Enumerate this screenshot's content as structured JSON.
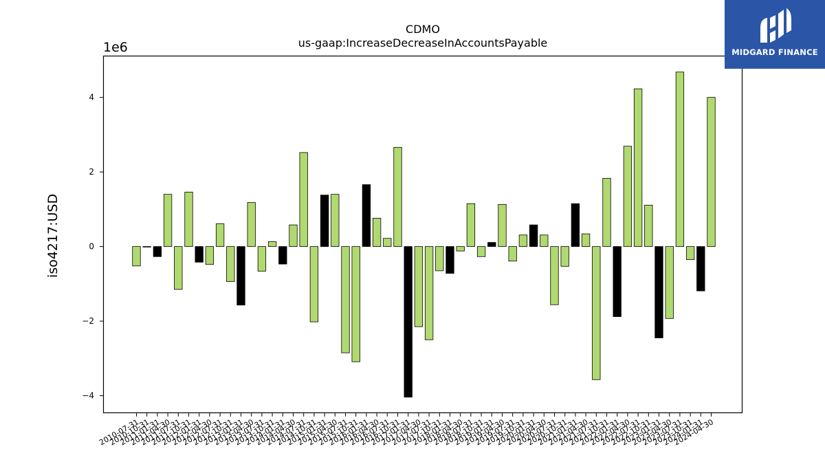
{
  "brand": {
    "name": "MIDGARD FINANCE",
    "bg_color": "#2b56a8"
  },
  "chart_data": {
    "type": "bar",
    "title": "CDMO",
    "subtitle": "us-gaap:IncreaseDecreaseInAccountsPayable",
    "ylabel": "iso4217:USD",
    "y_scale_label": "1e6",
    "y_unit": 1000000,
    "ylim": [
      -4.45,
      5.1
    ],
    "yticks": [
      -4,
      -2,
      0,
      2,
      4
    ],
    "ytick_labels": [
      "−4",
      "−2",
      "0",
      "2",
      "4"
    ],
    "grid": false,
    "legend": "none",
    "colors": {
      "green": "#b0d96f",
      "black": "#000000"
    },
    "categories": [
      "2010-07-31",
      "2010-10-31",
      "2011-01-31",
      "2011-04-30",
      "2011-07-31",
      "2011-10-31",
      "2012-01-31",
      "2012-04-30",
      "2012-07-31",
      "2012-10-31",
      "2013-01-31",
      "2013-04-30",
      "2013-07-31",
      "2013-10-31",
      "2014-01-31",
      "2014-04-30",
      "2014-07-31",
      "2014-10-31",
      "2015-01-31",
      "2015-04-30",
      "2015-07-31",
      "2015-10-31",
      "2016-01-31",
      "2016-04-30",
      "2016-07-31",
      "2016-10-31",
      "2017-01-31",
      "2017-04-30",
      "2017-07-31",
      "2017-10-31",
      "2018-01-31",
      "2018-04-30",
      "2018-07-31",
      "2018-10-31",
      "2019-01-31",
      "2019-04-30",
      "2019-07-31",
      "2019-10-31",
      "2020-01-31",
      "2020-04-30",
      "2020-07-31",
      "2020-10-31",
      "2021-01-31",
      "2021-04-30",
      "2021-07-31",
      "2021-10-31",
      "2022-01-31",
      "2022-04-30",
      "2022-07-31",
      "2022-10-31",
      "2023-01-31",
      "2023-04-30",
      "2023-07-31",
      "2023-10-31",
      "2024-01-31",
      "2024-04-30"
    ],
    "values": [
      -520000,
      -10000,
      -270000,
      1400000,
      -1150000,
      1460000,
      -420000,
      -480000,
      610000,
      -940000,
      -1570000,
      1180000,
      -660000,
      130000,
      -470000,
      580000,
      2520000,
      -2020000,
      1380000,
      1400000,
      -2850000,
      -3090000,
      1660000,
      760000,
      220000,
      2660000,
      -4040000,
      -2150000,
      -2500000,
      -650000,
      -720000,
      -120000,
      1150000,
      -270000,
      110000,
      1130000,
      -390000,
      310000,
      580000,
      310000,
      -1560000,
      -530000,
      1150000,
      340000,
      -3570000,
      1830000,
      -1880000,
      2690000,
      4230000,
      1110000,
      -2450000,
      -1930000,
      4680000,
      -350000,
      -1190000,
      4000000
    ],
    "bar_colors": [
      "green",
      "green",
      "black",
      "green",
      "green",
      "green",
      "black",
      "green",
      "green",
      "green",
      "black",
      "green",
      "green",
      "green",
      "black",
      "green",
      "green",
      "green",
      "black",
      "green",
      "green",
      "green",
      "black",
      "green",
      "green",
      "green",
      "black",
      "green",
      "green",
      "green",
      "black",
      "green",
      "green",
      "green",
      "black",
      "green",
      "green",
      "green",
      "black",
      "green",
      "green",
      "green",
      "black",
      "green",
      "green",
      "green",
      "black",
      "green",
      "green",
      "green",
      "black",
      "green",
      "green",
      "green",
      "black",
      "green"
    ]
  }
}
